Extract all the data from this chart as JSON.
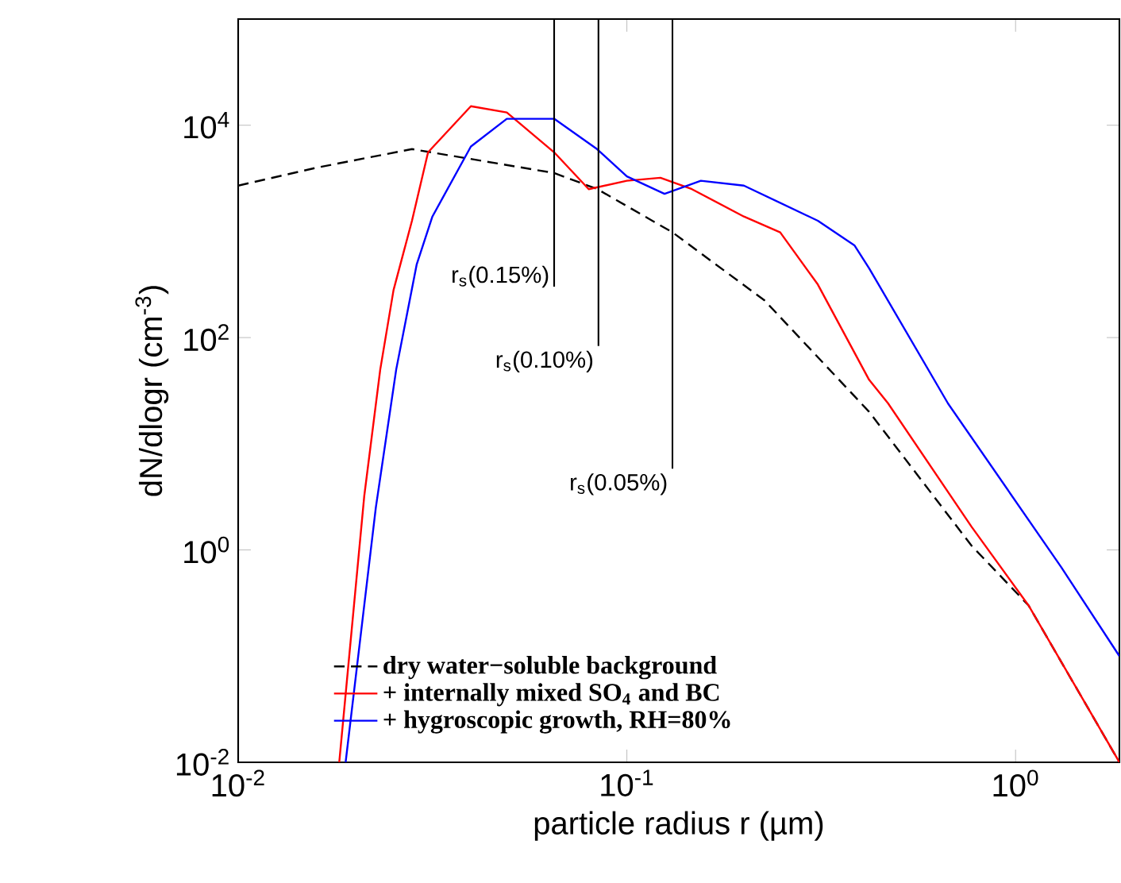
{
  "chart_data": {
    "type": "line",
    "xlabel": "particle radius r (µm)",
    "ylabel": "dN/dlogr (cm$^{-3}$)",
    "log": "xy",
    "xlim": [
      0.01,
      1.85
    ],
    "ylim": [
      0.01,
      100000
    ],
    "xticks": [
      {
        "value": 0.01,
        "label": "10$^{-2}$"
      },
      {
        "value": 0.1,
        "label": "10$^{-1}$"
      },
      {
        "value": 1,
        "label": "10$^{0}$"
      }
    ],
    "yticks": [
      {
        "value": 0.01,
        "label": "10$^{-2}$"
      },
      {
        "value": 1,
        "label": "10$^{0}$"
      },
      {
        "value": 100,
        "label": "10$^{2}$"
      },
      {
        "value": 10000,
        "label": "10$^{4}$"
      }
    ],
    "legend": "bottom left",
    "series": [
      {
        "name": "dry water−soluble background",
        "color": "#000000",
        "line_style": "dashed",
        "x": [
          0.01,
          0.016,
          0.028,
          0.065,
          0.084,
          0.131,
          0.226,
          0.42,
          0.77,
          1.08,
          1.85
        ],
        "values": [
          2700,
          4000,
          5960,
          3550,
          2500,
          980,
          224,
          20,
          1.1,
          0.3,
          0.01
        ]
      },
      {
        "name": "+ internally mixed SO$_{4}$ and BC",
        "color": "#ff0000",
        "line_style": "solid",
        "x": [
          0.0182,
          0.0211,
          0.0232,
          0.0251,
          0.028,
          0.0308,
          0.0397,
          0.0491,
          0.065,
          0.0798,
          0.1,
          0.122,
          0.147,
          0.2,
          0.248,
          0.31,
          0.42,
          0.47,
          0.77,
          1.08,
          1.85
        ],
        "values": [
          0.01,
          3.2,
          50,
          280,
          1260,
          5560,
          15100,
          13200,
          5560,
          2500,
          3000,
          3200,
          2500,
          1380,
          980,
          316,
          40,
          24,
          1.66,
          0.3,
          0.01
        ]
      },
      {
        "name": "+ hygroscopic growth, RH=80%",
        "color": "#0000ff",
        "line_style": "solid",
        "x": [
          0.0189,
          0.0226,
          0.0255,
          0.0288,
          0.0316,
          0.0397,
          0.0491,
          0.065,
          0.0838,
          0.1,
          0.125,
          0.155,
          0.2,
          0.31,
          0.385,
          0.42,
          0.67,
          1.31,
          1.85
        ],
        "values": [
          0.01,
          2.5,
          50,
          490,
          1380,
          6300,
          11500,
          11500,
          5960,
          3300,
          2260,
          3000,
          2700,
          1260,
          740,
          450,
          24,
          0.69,
          0.1
        ]
      }
    ],
    "ref_lines": [
      {
        "axis": "x",
        "value": 0.065,
        "label": "r$_{s}$(0.15%)"
      },
      {
        "axis": "x",
        "value": 0.0845,
        "label": "r$_{s}$(0.10%)"
      },
      {
        "axis": "x",
        "value": 0.131,
        "label": "r$_{s}$(0.05%)"
      }
    ]
  }
}
